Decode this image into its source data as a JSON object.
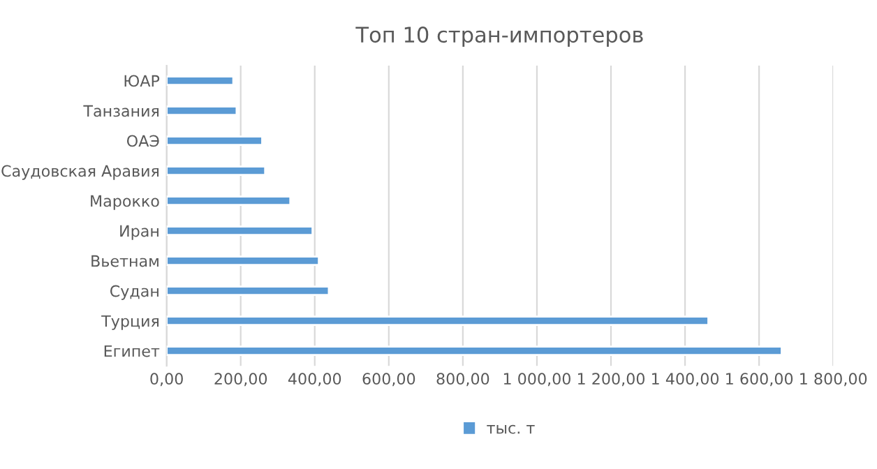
{
  "chart_data": {
    "type": "bar",
    "orientation": "horizontal",
    "title": "Топ 10 стран-импортеров",
    "categories": [
      "ЮАР",
      "Танзания",
      "ОАЭ",
      "Саудовская Аравия",
      "Марокко",
      "Иран",
      "Вьетнам",
      "Судан",
      "Турция",
      "Египет"
    ],
    "series": [
      {
        "name": "тыс. т",
        "color": "#5b9bd5",
        "values": [
          180,
          189,
          258,
          266,
          334,
          394,
          411,
          438,
          1463,
          1661
        ]
      }
    ],
    "xlim": [
      0,
      1800
    ],
    "xticks": [
      {
        "value": 0,
        "label": "0,00"
      },
      {
        "value": 200,
        "label": "200,00"
      },
      {
        "value": 400,
        "label": "400,00"
      },
      {
        "value": 600,
        "label": "600,00"
      },
      {
        "value": 800,
        "label": "800,00"
      },
      {
        "value": 1000,
        "label": "1 000,00"
      },
      {
        "value": 1200,
        "label": "1 200,00"
      },
      {
        "value": 1400,
        "label": "1 400,00"
      },
      {
        "value": 1600,
        "label": "1 600,00"
      },
      {
        "value": 1800,
        "label": "1 800,00"
      }
    ],
    "grid": "x",
    "legend": "bottom"
  }
}
